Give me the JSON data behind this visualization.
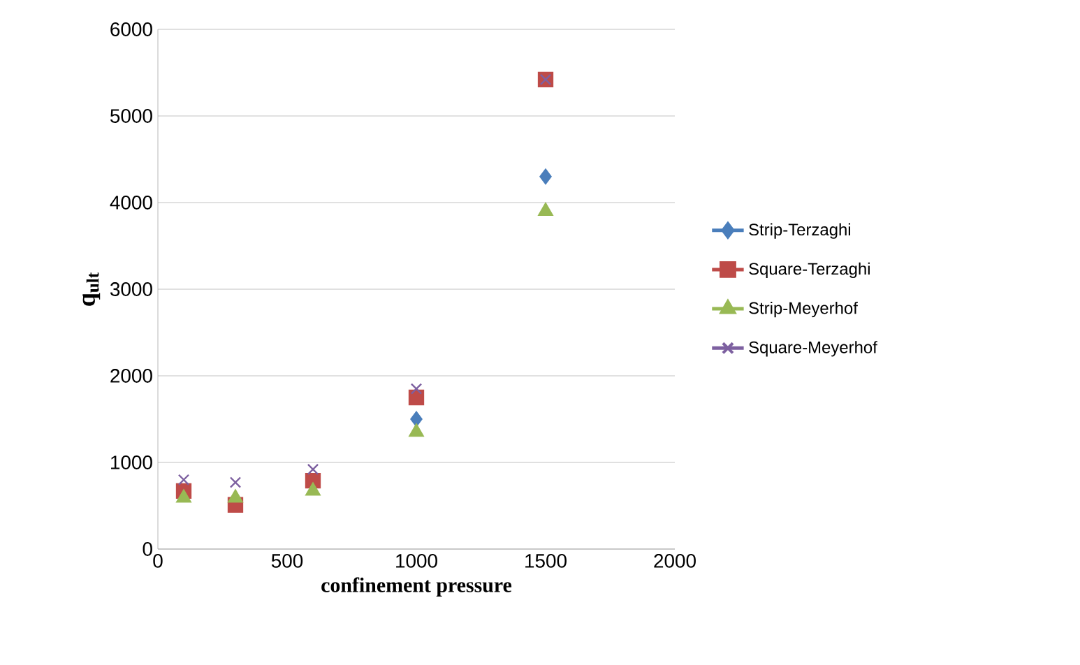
{
  "chart_data": {
    "type": "scatter",
    "xlabel": "confinement pressure",
    "ylabel": "q$_{ult}$",
    "x": [
      100,
      300,
      600,
      1000,
      1500
    ],
    "series": [
      {
        "name": "Strip-Terzaghi",
        "color": "#4a7ebb",
        "marker": "diamond",
        "values": [
          null,
          null,
          null,
          1500,
          4300
        ]
      },
      {
        "name": "Square-Terzaghi",
        "color": "#be4b48",
        "marker": "square",
        "values": [
          670,
          510,
          790,
          1750,
          5420
        ]
      },
      {
        "name": "Strip-Meyerhof",
        "color": "#98b954",
        "marker": "triangle",
        "values": [
          590,
          590,
          670,
          1350,
          3900
        ]
      },
      {
        "name": "Square-Meyerhof",
        "color": "#7d60a0",
        "marker": "cross",
        "values": [
          800,
          770,
          920,
          1850,
          5420
        ]
      }
    ],
    "xlim": [
      0,
      2000
    ],
    "xticks": [
      0,
      500,
      1000,
      1500,
      2000
    ],
    "ylim": [
      0,
      6000
    ],
    "yticks": [
      0,
      1000,
      2000,
      3000,
      4000,
      5000,
      6000
    ],
    "grid": "y",
    "legend": "right"
  }
}
